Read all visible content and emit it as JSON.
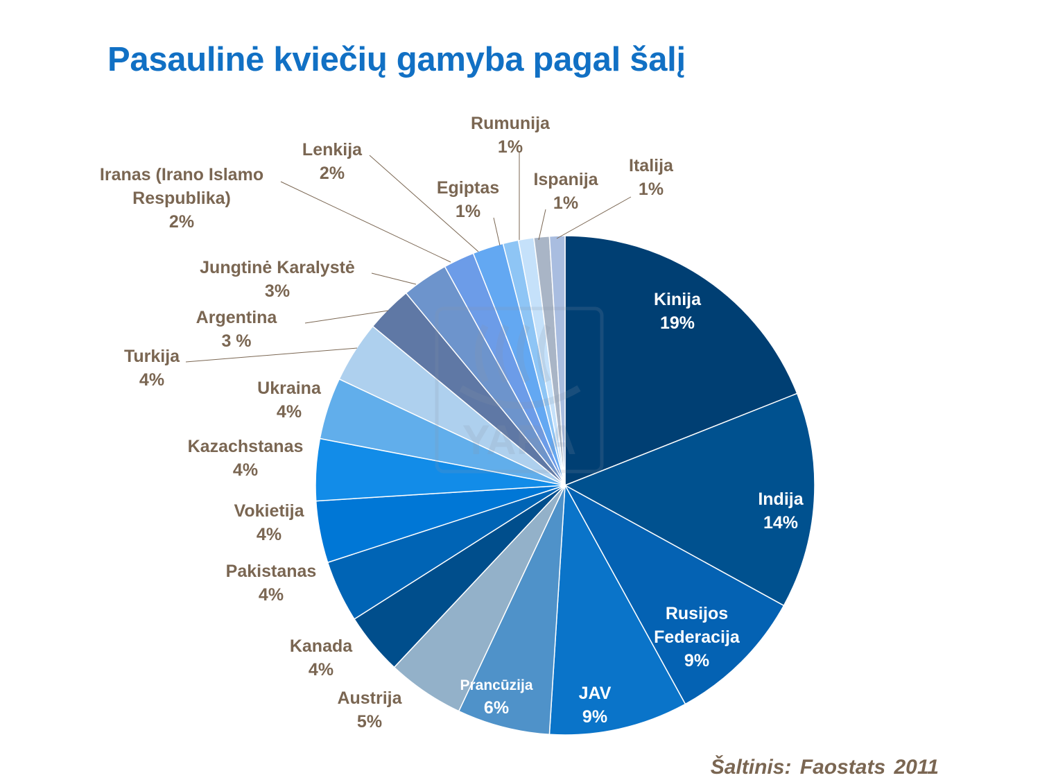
{
  "title": "Pasaulinė kviečių gamyba pagal šalį",
  "source": "Šaltinis: Faostats 2011",
  "watermark": "YARA",
  "chart_data": {
    "type": "pie",
    "title": "Pasaulinė kviečių gamyba pagal šalį",
    "start": "12 o'clock",
    "direction": "clockwise",
    "slices": [
      {
        "name": "Kinija",
        "lines": [
          "Kinija"
        ],
        "value_label": "19%",
        "value": 19,
        "color": "#003f73"
      },
      {
        "name": "Indija",
        "lines": [
          "Indija"
        ],
        "value_label": "14%",
        "value": 14,
        "color": "#00518f"
      },
      {
        "name": "Rusijos Federacija",
        "lines": [
          "Rusijos",
          "Federacija"
        ],
        "value_label": "9%",
        "value": 9,
        "color": "#0462b3"
      },
      {
        "name": "JAV",
        "lines": [
          "JAV"
        ],
        "value_label": "9%",
        "value": 9,
        "color": "#0a74c9"
      },
      {
        "name": "Prancūzija",
        "lines": [
          "Prancūzija"
        ],
        "value_label": "6%",
        "value": 6,
        "color": "#4f92c9"
      },
      {
        "name": "Austrija",
        "lines": [
          "Austrija"
        ],
        "value_label": "5%",
        "value": 5,
        "color": "#93b1c9"
      },
      {
        "name": "Kanada",
        "lines": [
          "Kanada"
        ],
        "value_label": "4%",
        "value": 4,
        "color": "#004e8c"
      },
      {
        "name": "Pakistanas",
        "lines": [
          "Pakistanas"
        ],
        "value_label": "4%",
        "value": 4,
        "color": "#0064b5"
      },
      {
        "name": "Vokietija",
        "lines": [
          "Vokietija"
        ],
        "value_label": "4%",
        "value": 4,
        "color": "#0077d6"
      },
      {
        "name": "Kazachstanas",
        "lines": [
          "Kazachstanas"
        ],
        "value_label": "4%",
        "value": 4,
        "color": "#128ce8"
      },
      {
        "name": "Ukraina",
        "lines": [
          "Ukraina"
        ],
        "value_label": "4%",
        "value": 4,
        "color": "#61aeeb"
      },
      {
        "name": "Turkija",
        "lines": [
          "Turkija"
        ],
        "value_label": "4%",
        "value": 4,
        "color": "#aed0ee"
      },
      {
        "name": "Argentina",
        "lines": [
          "Argentina"
        ],
        "value_label": "3 %",
        "value": 3,
        "color": "#5f78a5"
      },
      {
        "name": "Jungtinė Karalystė",
        "lines": [
          "Jungtinė Karalystė"
        ],
        "value_label": "3%",
        "value": 3,
        "color": "#6d94cc"
      },
      {
        "name": "Iranas (Irano Islamo Respublika)",
        "lines": [
          "Iranas (Irano Islamo",
          "Respublika)"
        ],
        "value_label": "2%",
        "value": 2,
        "color": "#6c9ce8"
      },
      {
        "name": "Lenkija",
        "lines": [
          "Lenkija"
        ],
        "value_label": "2%",
        "value": 2,
        "color": "#63a8f2"
      },
      {
        "name": "Egiptas",
        "lines": [
          "Egiptas"
        ],
        "value_label": "1%",
        "value": 1,
        "color": "#8ec5f5"
      },
      {
        "name": "Rumunija",
        "lines": [
          "Rumunija"
        ],
        "value_label": "1%",
        "value": 1,
        "color": "#c5e1fa"
      },
      {
        "name": "Ispanija",
        "lines": [
          "Ispanija"
        ],
        "value_label": "1%",
        "value": 1,
        "color": "#a9b5c6"
      },
      {
        "name": "Italija",
        "lines": [
          "Italija"
        ],
        "value_label": "1%",
        "value": 1,
        "color": "#a9bde0"
      }
    ],
    "label_colors": {
      "inside": "#ffffff",
      "outside": "#7a6652",
      "leader": "#7a6652"
    }
  }
}
